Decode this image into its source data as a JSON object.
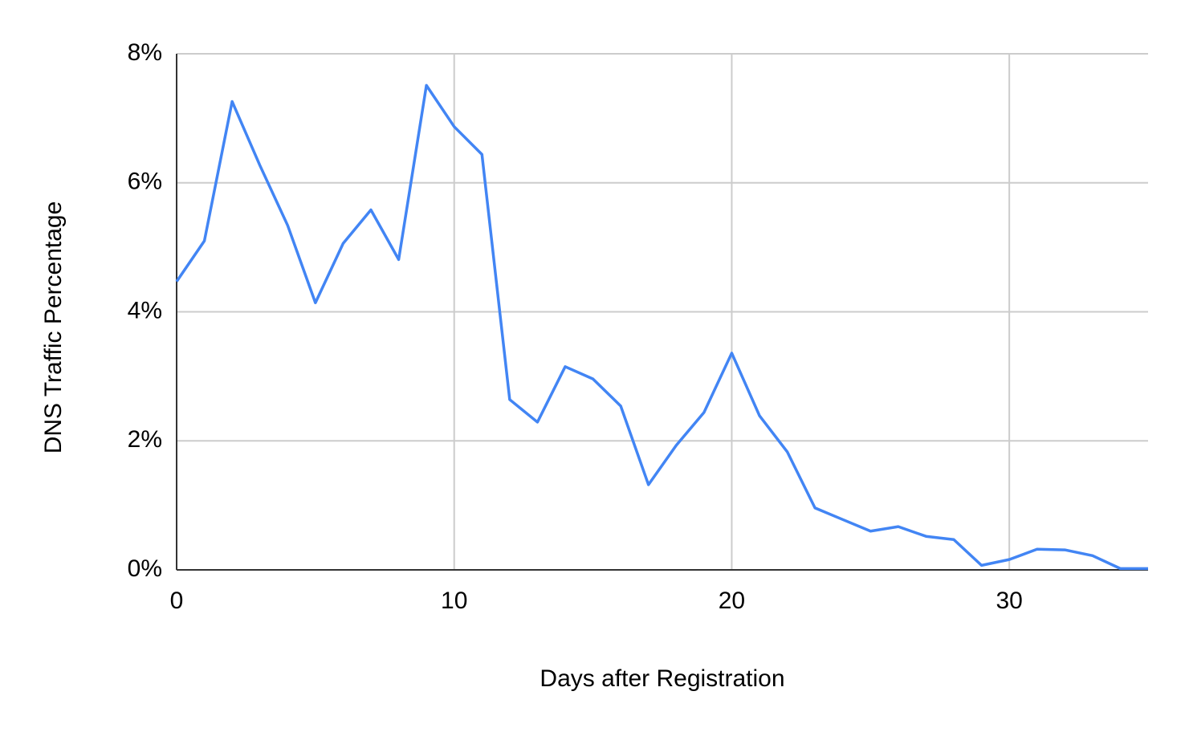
{
  "chart_data": {
    "type": "line",
    "x_label": "Days after Registration",
    "y_label": "DNS Traffic Percentage",
    "x": [
      0,
      1,
      2,
      3,
      4,
      5,
      6,
      7,
      8,
      9,
      10,
      11,
      12,
      13,
      14,
      15,
      16,
      17,
      18,
      19,
      20,
      21,
      22,
      23,
      24,
      25,
      26,
      27,
      28,
      29,
      30,
      31,
      32,
      33,
      34,
      35
    ],
    "values": [
      4.47,
      5.1,
      7.26,
      6.27,
      5.34,
      4.14,
      5.06,
      5.58,
      4.81,
      7.51,
      6.87,
      6.44,
      2.64,
      2.29,
      3.15,
      2.96,
      2.54,
      1.32,
      1.93,
      2.44,
      3.36,
      2.39,
      1.83,
      0.96,
      0.78,
      0.6,
      0.67,
      0.52,
      0.47,
      0.07,
      0.16,
      0.32,
      0.31,
      0.22,
      0.02,
      0.02
    ],
    "color": "#4285f4",
    "xlim": [
      0,
      35
    ],
    "xticks": [
      0,
      10,
      20,
      30
    ],
    "ylim": [
      0,
      8
    ],
    "yticks": [
      {
        "value": 0,
        "label": "0%"
      },
      {
        "value": 2,
        "label": "2%"
      },
      {
        "value": 4,
        "label": "4%"
      },
      {
        "value": 6,
        "label": "6%"
      },
      {
        "value": 8,
        "label": "8%"
      }
    ],
    "grid": true
  }
}
